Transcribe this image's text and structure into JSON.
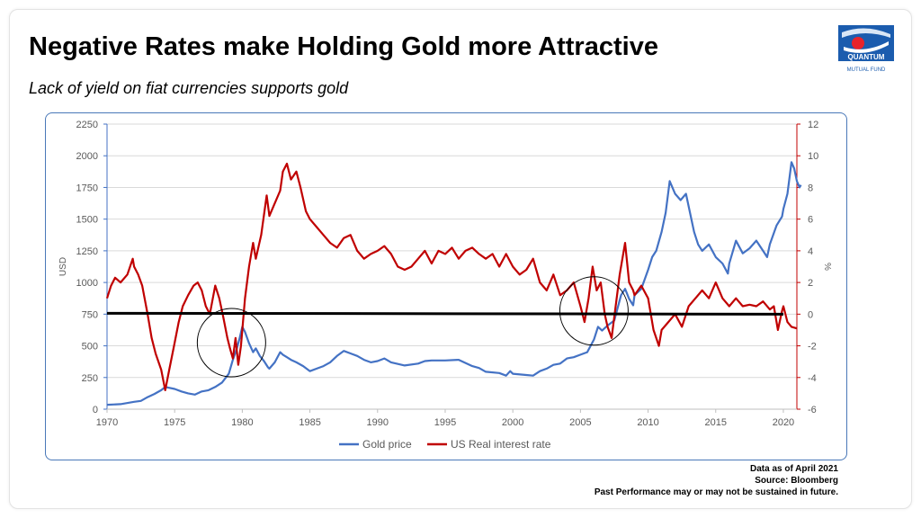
{
  "slide": {
    "title": "Negative Rates make Holding Gold more Attractive",
    "subtitle": "Lack of yield on fiat currencies supports gold"
  },
  "logo": {
    "name": "QUANTUM",
    "tagline": "MUTUAL FUND",
    "colors": {
      "blue": "#1b5cae",
      "red": "#e8232a",
      "light": "#d9e6f5"
    }
  },
  "footer": {
    "line1": "Data as of April 2021",
    "line2": "Source: Bloomberg",
    "line3": "Past Performance may or may not be sustained in future."
  },
  "chart_data": {
    "type": "line",
    "title": "",
    "x_ticks": [
      "1970",
      "1975",
      "1980",
      "1985",
      "1990",
      "1995",
      "2000",
      "2005",
      "2010",
      "2015",
      "2020"
    ],
    "xlim": [
      1970,
      2021
    ],
    "y_left": {
      "label": "USD",
      "ticks": [
        "0",
        "250",
        "500",
        "750",
        "1000",
        "1250",
        "1500",
        "1750",
        "2000",
        "2250"
      ],
      "lim": [
        0,
        2250
      ]
    },
    "y_right": {
      "label": "%",
      "ticks": [
        "-6",
        "-4",
        "-2",
        "0",
        "2",
        "4",
        "6",
        "8",
        "10",
        "12"
      ],
      "lim": [
        -6,
        12
      ]
    },
    "legend": {
      "position": "bottom",
      "items": [
        "Gold price",
        "US Real interest rate"
      ]
    },
    "grid": "horizontal",
    "reference_line": {
      "axis": "right",
      "value": 0,
      "color": "#000000"
    },
    "annotations": [
      {
        "type": "circle",
        "center": [
          1979.2,
          -1.8
        ]
      },
      {
        "type": "circle",
        "center": [
          2006.0,
          0.2
        ]
      }
    ],
    "series": [
      {
        "name": "Gold price",
        "axis": "left",
        "color": "#4472c4",
        "points": [
          [
            1970,
            35
          ],
          [
            1971,
            40
          ],
          [
            1972,
            58
          ],
          [
            1972.5,
            65
          ],
          [
            1973,
            95
          ],
          [
            1973.5,
            120
          ],
          [
            1974,
            150
          ],
          [
            1974.3,
            175
          ],
          [
            1975,
            160
          ],
          [
            1975.5,
            140
          ],
          [
            1976,
            125
          ],
          [
            1976.5,
            115
          ],
          [
            1977,
            140
          ],
          [
            1977.5,
            150
          ],
          [
            1978,
            175
          ],
          [
            1978.5,
            210
          ],
          [
            1979,
            280
          ],
          [
            1979.3,
            390
          ],
          [
            1979.6,
            480
          ],
          [
            1979.8,
            560
          ],
          [
            1980,
            650
          ],
          [
            1980.2,
            610
          ],
          [
            1980.5,
            520
          ],
          [
            1980.8,
            450
          ],
          [
            1981,
            480
          ],
          [
            1981.3,
            420
          ],
          [
            1981.6,
            380
          ],
          [
            1981.9,
            330
          ],
          [
            1982,
            320
          ],
          [
            1982.4,
            370
          ],
          [
            1982.8,
            450
          ],
          [
            1983,
            430
          ],
          [
            1983.3,
            410
          ],
          [
            1983.6,
            390
          ],
          [
            1984,
            370
          ],
          [
            1984.5,
            340
          ],
          [
            1985,
            300
          ],
          [
            1985.5,
            320
          ],
          [
            1986,
            340
          ],
          [
            1986.5,
            370
          ],
          [
            1987,
            420
          ],
          [
            1987.5,
            460
          ],
          [
            1988,
            440
          ],
          [
            1988.5,
            420
          ],
          [
            1989,
            390
          ],
          [
            1989.5,
            370
          ],
          [
            1990,
            380
          ],
          [
            1990.5,
            400
          ],
          [
            1991,
            370
          ],
          [
            1992,
            345
          ],
          [
            1993,
            360
          ],
          [
            1993.5,
            380
          ],
          [
            1994,
            385
          ],
          [
            1995,
            385
          ],
          [
            1996,
            390
          ],
          [
            1997,
            340
          ],
          [
            1997.5,
            325
          ],
          [
            1998,
            295
          ],
          [
            1999,
            285
          ],
          [
            1999.5,
            265
          ],
          [
            1999.8,
            300
          ],
          [
            2000,
            280
          ],
          [
            2001,
            270
          ],
          [
            2001.5,
            265
          ],
          [
            2002,
            300
          ],
          [
            2002.5,
            320
          ],
          [
            2003,
            350
          ],
          [
            2003.5,
            360
          ],
          [
            2004,
            400
          ],
          [
            2004.5,
            410
          ],
          [
            2005,
            430
          ],
          [
            2005.5,
            450
          ],
          [
            2006,
            550
          ],
          [
            2006.3,
            650
          ],
          [
            2006.6,
            620
          ],
          [
            2007,
            660
          ],
          [
            2007.5,
            700
          ],
          [
            2008,
            900
          ],
          [
            2008.3,
            950
          ],
          [
            2008.6,
            870
          ],
          [
            2008.9,
            820
          ],
          [
            2009,
            900
          ],
          [
            2009.5,
            950
          ],
          [
            2010,
            1100
          ],
          [
            2010.3,
            1200
          ],
          [
            2010.6,
            1250
          ],
          [
            2011,
            1400
          ],
          [
            2011.3,
            1550
          ],
          [
            2011.6,
            1800
          ],
          [
            2011.8,
            1750
          ],
          [
            2012,
            1700
          ],
          [
            2012.4,
            1650
          ],
          [
            2012.8,
            1700
          ],
          [
            2013,
            1600
          ],
          [
            2013.4,
            1400
          ],
          [
            2013.7,
            1300
          ],
          [
            2014,
            1250
          ],
          [
            2014.5,
            1300
          ],
          [
            2015,
            1200
          ],
          [
            2015.5,
            1150
          ],
          [
            2015.9,
            1070
          ],
          [
            2016,
            1150
          ],
          [
            2016.5,
            1330
          ],
          [
            2017,
            1230
          ],
          [
            2017.5,
            1270
          ],
          [
            2018,
            1330
          ],
          [
            2018.5,
            1250
          ],
          [
            2018.8,
            1200
          ],
          [
            2019,
            1300
          ],
          [
            2019.5,
            1450
          ],
          [
            2019.9,
            1520
          ],
          [
            2020,
            1580
          ],
          [
            2020.3,
            1700
          ],
          [
            2020.6,
            1950
          ],
          [
            2020.8,
            1900
          ],
          [
            2021,
            1800
          ],
          [
            2021.2,
            1750
          ],
          [
            2021.3,
            1770
          ]
        ]
      },
      {
        "name": "US Real interest rate",
        "axis": "right",
        "color": "#c00000",
        "points": [
          [
            1970,
            1.0
          ],
          [
            1970.3,
            1.8
          ],
          [
            1970.6,
            2.3
          ],
          [
            1971,
            2.0
          ],
          [
            1971.5,
            2.5
          ],
          [
            1971.9,
            3.5
          ],
          [
            1972,
            3.0
          ],
          [
            1972.3,
            2.5
          ],
          [
            1972.6,
            1.8
          ],
          [
            1973,
            0.0
          ],
          [
            1973.3,
            -1.5
          ],
          [
            1973.6,
            -2.5
          ],
          [
            1974,
            -3.5
          ],
          [
            1974.3,
            -4.8
          ],
          [
            1974.6,
            -3.5
          ],
          [
            1975,
            -1.8
          ],
          [
            1975.3,
            -0.5
          ],
          [
            1975.6,
            0.5
          ],
          [
            1976,
            1.2
          ],
          [
            1976.4,
            1.8
          ],
          [
            1976.7,
            2.0
          ],
          [
            1977,
            1.5
          ],
          [
            1977.3,
            0.5
          ],
          [
            1977.6,
            0.0
          ],
          [
            1978,
            1.8
          ],
          [
            1978.3,
            1.0
          ],
          [
            1978.6,
            -0.2
          ],
          [
            1978.9,
            -1.5
          ],
          [
            1979.1,
            -2.2
          ],
          [
            1979.3,
            -2.8
          ],
          [
            1979.5,
            -1.5
          ],
          [
            1979.7,
            -3.2
          ],
          [
            1979.9,
            -2.0
          ],
          [
            1980.2,
            1.0
          ],
          [
            1980.5,
            3.0
          ],
          [
            1980.8,
            4.5
          ],
          [
            1981,
            3.5
          ],
          [
            1981.4,
            5.0
          ],
          [
            1981.8,
            7.5
          ],
          [
            1982,
            6.2
          ],
          [
            1982.4,
            7.0
          ],
          [
            1982.8,
            7.8
          ],
          [
            1983,
            9.0
          ],
          [
            1983.3,
            9.5
          ],
          [
            1983.6,
            8.5
          ],
          [
            1984,
            9.0
          ],
          [
            1984.3,
            8.0
          ],
          [
            1984.7,
            6.5
          ],
          [
            1985,
            6.0
          ],
          [
            1985.5,
            5.5
          ],
          [
            1986,
            5.0
          ],
          [
            1986.5,
            4.5
          ],
          [
            1987,
            4.2
          ],
          [
            1987.5,
            4.8
          ],
          [
            1988,
            5.0
          ],
          [
            1988.5,
            4.0
          ],
          [
            1989,
            3.5
          ],
          [
            1989.5,
            3.8
          ],
          [
            1990,
            4.0
          ],
          [
            1990.5,
            4.3
          ],
          [
            1991,
            3.8
          ],
          [
            1991.5,
            3.0
          ],
          [
            1992,
            2.8
          ],
          [
            1992.5,
            3.0
          ],
          [
            1993,
            3.5
          ],
          [
            1993.5,
            4.0
          ],
          [
            1994,
            3.2
          ],
          [
            1994.5,
            4.0
          ],
          [
            1995,
            3.8
          ],
          [
            1995.5,
            4.2
          ],
          [
            1996,
            3.5
          ],
          [
            1996.5,
            4.0
          ],
          [
            1997,
            4.2
          ],
          [
            1997.5,
            3.8
          ],
          [
            1998,
            3.5
          ],
          [
            1998.5,
            3.8
          ],
          [
            1999,
            3.0
          ],
          [
            1999.5,
            3.8
          ],
          [
            2000,
            3.0
          ],
          [
            2000.5,
            2.5
          ],
          [
            2001,
            2.8
          ],
          [
            2001.5,
            3.5
          ],
          [
            2002,
            2.0
          ],
          [
            2002.5,
            1.5
          ],
          [
            2003,
            2.5
          ],
          [
            2003.5,
            1.2
          ],
          [
            2004,
            1.5
          ],
          [
            2004.5,
            2.0
          ],
          [
            2005,
            0.5
          ],
          [
            2005.3,
            -0.5
          ],
          [
            2005.6,
            1.0
          ],
          [
            2005.9,
            3.0
          ],
          [
            2006.2,
            1.5
          ],
          [
            2006.5,
            2.0
          ],
          [
            2006.8,
            0.0
          ],
          [
            2007,
            -0.8
          ],
          [
            2007.3,
            -1.5
          ],
          [
            2007.6,
            0.5
          ],
          [
            2007.9,
            2.5
          ],
          [
            2008.3,
            4.5
          ],
          [
            2008.6,
            2.0
          ],
          [
            2008.9,
            1.5
          ],
          [
            2009,
            1.2
          ],
          [
            2009.5,
            1.8
          ],
          [
            2010,
            1.0
          ],
          [
            2010.4,
            -1.0
          ],
          [
            2010.8,
            -2.0
          ],
          [
            2011,
            -1.0
          ],
          [
            2011.5,
            -0.5
          ],
          [
            2012,
            0.0
          ],
          [
            2012.5,
            -0.8
          ],
          [
            2013,
            0.5
          ],
          [
            2013.5,
            1.0
          ],
          [
            2014,
            1.5
          ],
          [
            2014.5,
            1.0
          ],
          [
            2015,
            2.0
          ],
          [
            2015.5,
            1.0
          ],
          [
            2016,
            0.5
          ],
          [
            2016.5,
            1.0
          ],
          [
            2017,
            0.5
          ],
          [
            2017.5,
            0.6
          ],
          [
            2018,
            0.5
          ],
          [
            2018.5,
            0.8
          ],
          [
            2019,
            0.3
          ],
          [
            2019.3,
            0.5
          ],
          [
            2019.6,
            -1.0
          ],
          [
            2019.9,
            0.2
          ],
          [
            2020,
            0.5
          ],
          [
            2020.3,
            -0.5
          ],
          [
            2020.6,
            -0.8
          ],
          [
            2021,
            -0.9
          ]
        ]
      }
    ]
  }
}
